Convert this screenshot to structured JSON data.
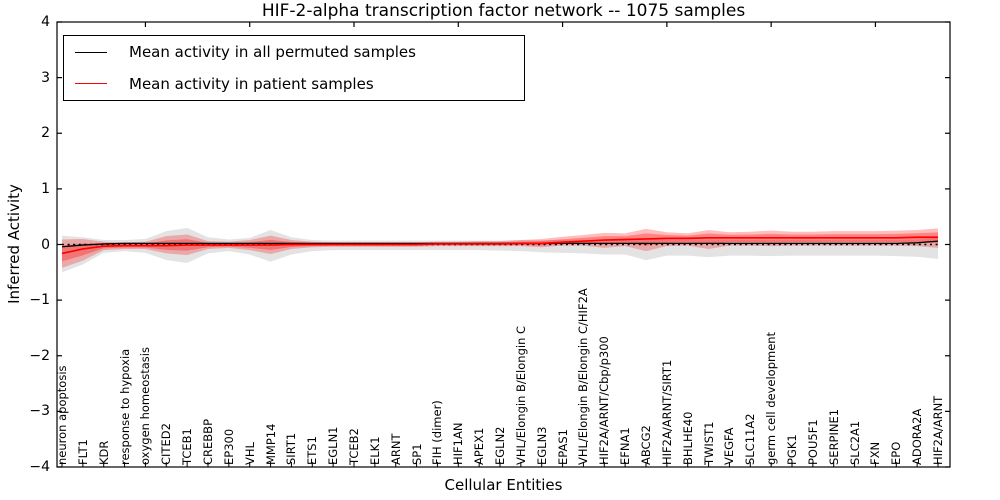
{
  "title": "HIF-2-alpha transcription factor network -- 1075 samples",
  "axes": {
    "ylabel": "Inferred Activity",
    "xlabel": "Cellular Entities",
    "ytick_labels": [
      "4",
      "3",
      "2",
      "1",
      "0",
      "−1",
      "−2",
      "−3",
      "−4"
    ]
  },
  "legend": {
    "entries": [
      {
        "label": "Mean activity in all permuted samples",
        "color": "#000000"
      },
      {
        "label": "Mean activity in patient samples",
        "color": "#ff0000"
      }
    ]
  },
  "chart_data": {
    "type": "line",
    "title": "HIF-2-alpha transcription factor network -- 1075 samples",
    "xlabel": "Cellular Entities",
    "ylabel": "Inferred Activity",
    "ylim": [
      -4,
      4
    ],
    "yticks": [
      4,
      3,
      2,
      1,
      0,
      -1,
      -2,
      -3,
      -4
    ],
    "grid": false,
    "legend_position": "upper left",
    "categories": [
      "neuron apoptosis",
      "FLT1",
      "KDR",
      "response to hypoxia",
      "oxygen homeostasis",
      "CITED2",
      "TCEB1",
      "CREBBP",
      "EP300",
      "VHL",
      "MMP14",
      "SIRT1",
      "ETS1",
      "EGLN1",
      "TCEB2",
      "ELK1",
      "ARNT",
      "SP1",
      "FIH (dimer)",
      "HIF1AN",
      "APEX1",
      "EGLN2",
      "VHL/Elongin B/Elongin C",
      "EGLN3",
      "EPAS1",
      "VHL/Elongin B/Elongin C/HIF2A",
      "HIF2A/ARNT/Cbp/p300",
      "EFNA1",
      "ABCG2",
      "HIF2A/ARNT/SIRT1",
      "BHLHE40",
      "TWIST1",
      "VEGFA",
      "SLC11A2",
      "germ cell development",
      "PGK1",
      "POU5F1",
      "SERPINE1",
      "SLC2A1",
      "FXN",
      "EPO",
      "ADORA2A",
      "HIF2A/ARNT"
    ],
    "series": [
      {
        "name": "Mean activity in all permuted samples",
        "color": "#000000",
        "style": "solid",
        "values": [
          -0.04,
          -0.01,
          0.01,
          0.02,
          0.02,
          0.02,
          0.02,
          0.02,
          0.02,
          0.02,
          0.02,
          0.02,
          0.02,
          0.02,
          0.02,
          0.02,
          0.02,
          0.02,
          0.02,
          0.02,
          0.02,
          0.02,
          0.02,
          0.02,
          0.02,
          0.02,
          0.02,
          0.02,
          0.02,
          0.02,
          0.02,
          0.02,
          0.02,
          0.02,
          0.02,
          0.02,
          0.02,
          0.02,
          0.02,
          0.02,
          0.02,
          0.03,
          0.06
        ]
      },
      {
        "name": "Mean activity in patient samples",
        "color": "#ff0000",
        "style": "solid",
        "values": [
          -0.16,
          -0.08,
          -0.03,
          -0.02,
          -0.02,
          -0.02,
          -0.01,
          -0.01,
          -0.01,
          -0.01,
          -0.01,
          0.0,
          0.0,
          0.0,
          0.0,
          0.0,
          0.0,
          0.0,
          0.01,
          0.01,
          0.01,
          0.01,
          0.02,
          0.02,
          0.04,
          0.06,
          0.08,
          0.09,
          0.1,
          0.11,
          0.11,
          0.12,
          0.12,
          0.12,
          0.12,
          0.12,
          0.12,
          0.12,
          0.12,
          0.12,
          0.12,
          0.13,
          0.13
        ]
      }
    ],
    "bands": [
      {
        "name": "permuted samples range",
        "color": "rgba(0,0,0,0.11)",
        "upper": [
          0.16,
          0.13,
          0.08,
          0.08,
          0.1,
          0.24,
          0.3,
          0.13,
          0.09,
          0.12,
          0.26,
          0.13,
          0.08,
          0.07,
          0.07,
          0.07,
          0.07,
          0.07,
          0.07,
          0.07,
          0.07,
          0.07,
          0.08,
          0.08,
          0.08,
          0.08,
          0.08,
          0.08,
          0.1,
          0.08,
          0.08,
          0.09,
          0.08,
          0.08,
          0.08,
          0.08,
          0.08,
          0.08,
          0.08,
          0.08,
          0.08,
          0.09,
          0.11
        ],
        "lower": [
          -0.5,
          -0.36,
          -0.15,
          -0.12,
          -0.15,
          -0.28,
          -0.33,
          -0.16,
          -0.12,
          -0.18,
          -0.31,
          -0.18,
          -0.12,
          -0.1,
          -0.1,
          -0.1,
          -0.1,
          -0.1,
          -0.1,
          -0.1,
          -0.1,
          -0.11,
          -0.12,
          -0.14,
          -0.15,
          -0.16,
          -0.18,
          -0.18,
          -0.28,
          -0.2,
          -0.2,
          -0.23,
          -0.2,
          -0.2,
          -0.21,
          -0.2,
          -0.2,
          -0.2,
          -0.2,
          -0.2,
          -0.21,
          -0.22,
          -0.26
        ]
      },
      {
        "name": "patient samples range",
        "color": "rgba(255,0,0,0.26)",
        "upper": [
          0.09,
          0.1,
          0.05,
          0.04,
          0.05,
          0.15,
          0.18,
          0.06,
          0.05,
          0.08,
          0.16,
          0.08,
          0.05,
          0.04,
          0.04,
          0.04,
          0.04,
          0.04,
          0.05,
          0.05,
          0.06,
          0.06,
          0.08,
          0.1,
          0.14,
          0.17,
          0.21,
          0.2,
          0.28,
          0.22,
          0.2,
          0.26,
          0.22,
          0.23,
          0.25,
          0.23,
          0.23,
          0.24,
          0.24,
          0.24,
          0.25,
          0.26,
          0.29
        ],
        "lower": [
          -0.42,
          -0.29,
          -0.1,
          -0.08,
          -0.08,
          -0.16,
          -0.19,
          -0.08,
          -0.06,
          -0.1,
          -0.17,
          -0.08,
          -0.05,
          -0.04,
          -0.04,
          -0.04,
          -0.04,
          -0.04,
          -0.03,
          -0.03,
          -0.03,
          -0.03,
          -0.03,
          -0.05,
          -0.02,
          -0.02,
          -0.06,
          -0.03,
          -0.12,
          -0.03,
          -0.02,
          -0.08,
          -0.02,
          -0.02,
          -0.03,
          -0.02,
          -0.02,
          -0.02,
          -0.02,
          -0.02,
          -0.02,
          -0.03,
          -0.06
        ]
      }
    ],
    "zero_line": {
      "y": 0,
      "style": "dotted",
      "color": "#000000"
    }
  }
}
